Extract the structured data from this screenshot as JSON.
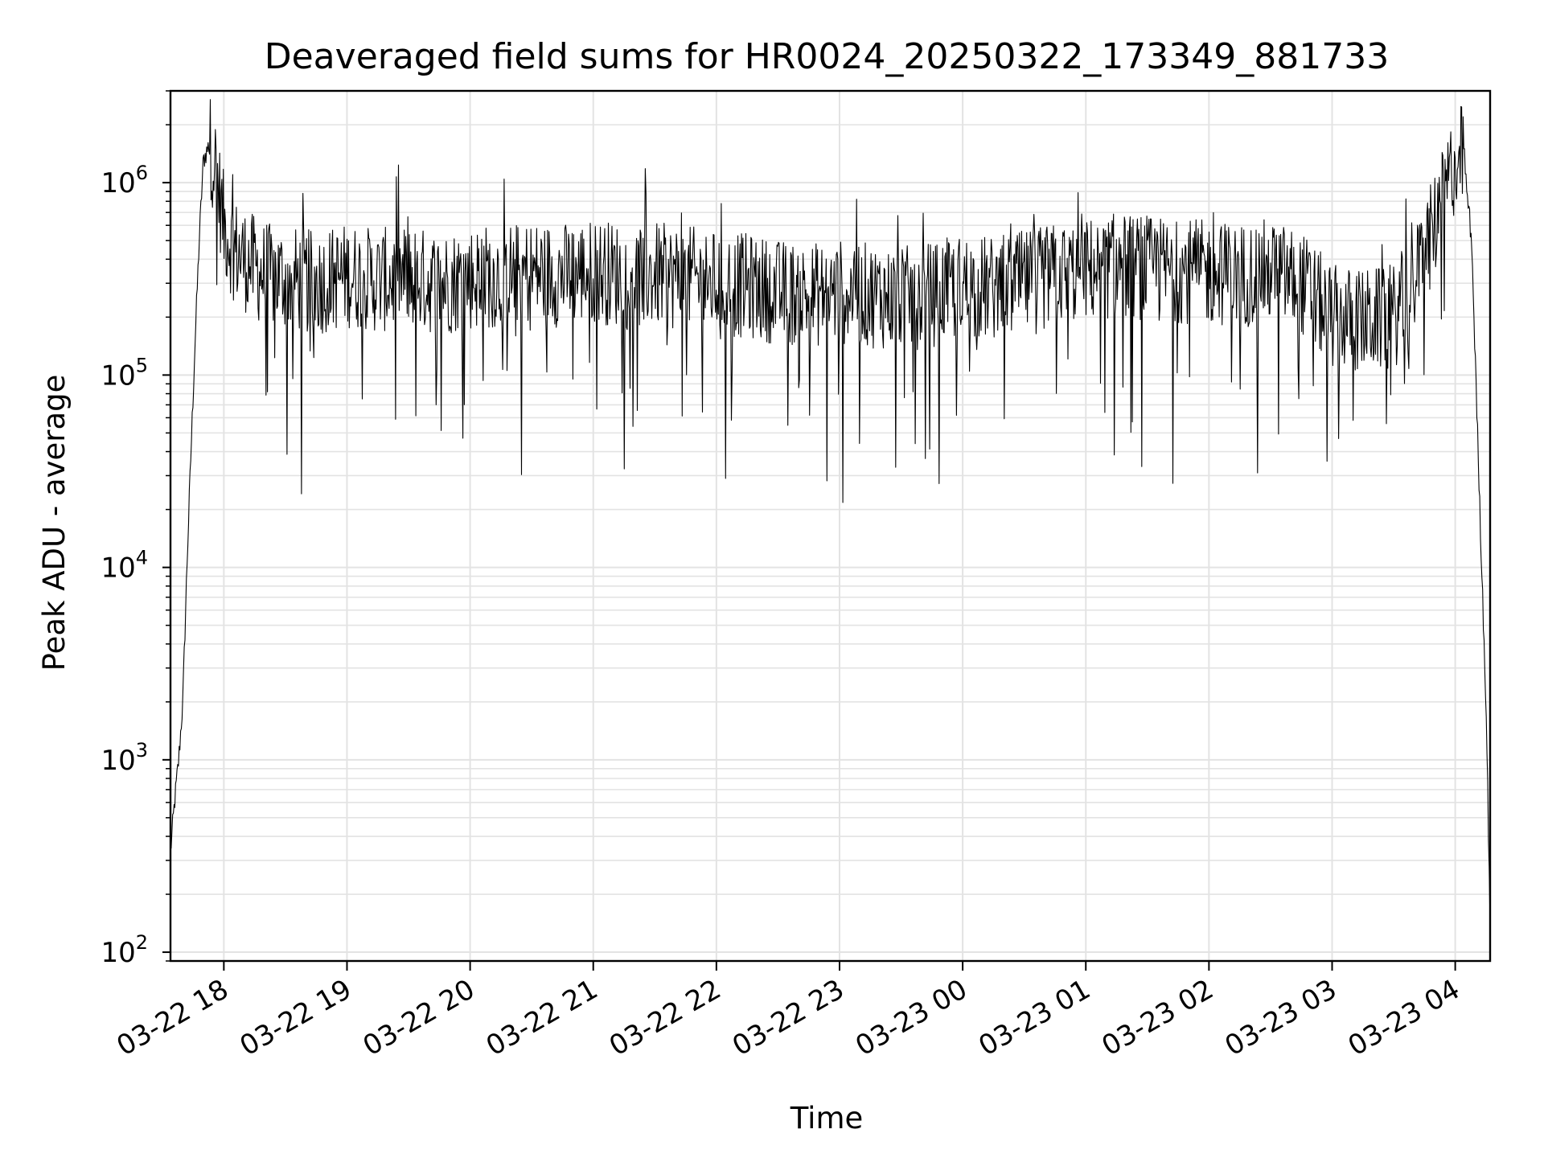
{
  "chart_data": {
    "type": "line",
    "title": "Deaveraged field sums for HR0024_20250322_173349_881733",
    "xlabel": "Time",
    "ylabel": "Peak ADU - average",
    "yscale": "log",
    "ylim": [
      90,
      3000000
    ],
    "xlim": [
      "2025-03-22T17:34",
      "2025-03-23T04:17"
    ],
    "grid": true,
    "line_color": "#000000",
    "x_ticks": [
      {
        "label": "03-22 18",
        "time": "2025-03-22T18:00"
      },
      {
        "label": "03-22 19",
        "time": "2025-03-22T19:00"
      },
      {
        "label": "03-22 20",
        "time": "2025-03-22T20:00"
      },
      {
        "label": "03-22 21",
        "time": "2025-03-22T21:00"
      },
      {
        "label": "03-22 22",
        "time": "2025-03-22T22:00"
      },
      {
        "label": "03-22 23",
        "time": "2025-03-22T23:00"
      },
      {
        "label": "03-23 00",
        "time": "2025-03-23T00:00"
      },
      {
        "label": "03-23 01",
        "time": "2025-03-23T01:00"
      },
      {
        "label": "03-23 02",
        "time": "2025-03-23T02:00"
      },
      {
        "label": "03-23 03",
        "time": "2025-03-23T03:00"
      },
      {
        "label": "03-23 04",
        "time": "2025-03-23T04:00"
      }
    ],
    "y_ticks": [
      {
        "base": "10",
        "exp": "2",
        "value": 100
      },
      {
        "base": "10",
        "exp": "3",
        "value": 1000
      },
      {
        "base": "10",
        "exp": "4",
        "value": 10000
      },
      {
        "base": "10",
        "exp": "5",
        "value": 100000
      },
      {
        "base": "10",
        "exp": "6",
        "value": 1000000
      }
    ],
    "series": [
      {
        "x": [
          "2025-03-22T17:34",
          "2025-03-22T17:36",
          "2025-03-22T17:38",
          "2025-03-22T17:40",
          "2025-03-22T17:42",
          "2025-03-22T17:44",
          "2025-03-22T17:46",
          "2025-03-22T17:48",
          "2025-03-22T17:50",
          "2025-03-22T17:53",
          "2025-03-22T17:56",
          "2025-03-22T18:00",
          "2025-03-22T18:05",
          "2025-03-22T18:10",
          "2025-03-22T18:20",
          "2025-03-22T18:30",
          "2025-03-22T18:45",
          "2025-03-22T19:00",
          "2025-03-22T19:15",
          "2025-03-22T19:30",
          "2025-03-22T19:45",
          "2025-03-22T20:00",
          "2025-03-22T20:15",
          "2025-03-22T20:30",
          "2025-03-22T20:45",
          "2025-03-22T21:00",
          "2025-03-22T21:15",
          "2025-03-22T21:30",
          "2025-03-22T21:45",
          "2025-03-22T22:00",
          "2025-03-22T22:15",
          "2025-03-22T22:30",
          "2025-03-22T22:45",
          "2025-03-22T23:00",
          "2025-03-22T23:15",
          "2025-03-22T23:30",
          "2025-03-22T23:45",
          "2025-03-23T00:00",
          "2025-03-23T00:15",
          "2025-03-23T00:30",
          "2025-03-23T00:45",
          "2025-03-23T01:00",
          "2025-03-23T01:15",
          "2025-03-23T01:30",
          "2025-03-23T01:45",
          "2025-03-23T02:00",
          "2025-03-23T02:15",
          "2025-03-23T02:30",
          "2025-03-23T02:45",
          "2025-03-23T03:00",
          "2025-03-23T03:15",
          "2025-03-23T03:30",
          "2025-03-23T03:40",
          "2025-03-23T03:50",
          "2025-03-23T03:55",
          "2025-03-23T04:00",
          "2025-03-23T04:04",
          "2025-03-23T04:08",
          "2025-03-23T04:12",
          "2025-03-23T04:15",
          "2025-03-23T04:17"
        ],
        "values": [
          330,
          600,
          1000,
          2000,
          10000,
          40000,
          150000,
          500000,
          1300000,
          1600000,
          1200000,
          600000,
          450000,
          400000,
          330000,
          320000,
          300000,
          330000,
          310000,
          320000,
          300000,
          320000,
          330000,
          340000,
          330000,
          350000,
          330000,
          330000,
          320000,
          300000,
          290000,
          270000,
          260000,
          270000,
          260000,
          250000,
          260000,
          290000,
          280000,
          300000,
          330000,
          350000,
          370000,
          360000,
          350000,
          340000,
          330000,
          350000,
          300000,
          200000,
          190000,
          200000,
          300000,
          600000,
          900000,
          1300000,
          1400000,
          500000,
          20000,
          2000,
          150
        ]
      }
    ]
  }
}
